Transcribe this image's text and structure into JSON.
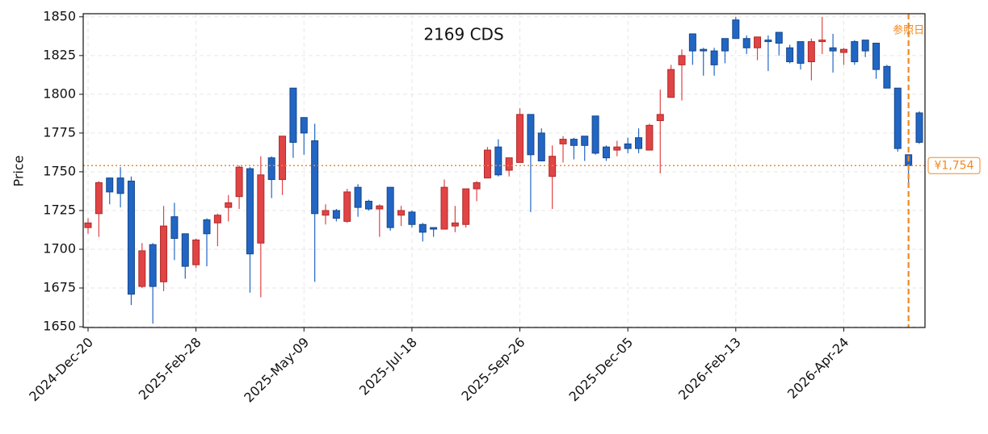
{
  "chart_data": {
    "type": "candlestick",
    "title": "2169  CDS",
    "y_label": "Price",
    "categories": [
      "2024-Dec-20",
      null,
      null,
      null,
      null,
      null,
      null,
      null,
      null,
      null,
      "2025-Feb-28",
      null,
      null,
      null,
      null,
      null,
      null,
      null,
      null,
      null,
      "2025-May-09",
      null,
      null,
      null,
      null,
      null,
      null,
      null,
      null,
      null,
      "2025-Jul-18",
      null,
      null,
      null,
      null,
      null,
      null,
      null,
      null,
      null,
      "2025-Sep-26",
      null,
      null,
      null,
      null,
      null,
      null,
      null,
      null,
      null,
      "2025-Dec-05",
      null,
      null,
      null,
      null,
      null,
      null,
      null,
      null,
      null,
      "2026-Feb-13",
      null,
      null,
      null,
      null,
      null,
      null,
      null,
      null,
      null,
      "2026-Apr-24",
      null,
      null,
      null,
      null,
      null,
      null,
      null
    ],
    "open": [
      1714,
      1723,
      1746,
      1746,
      1744,
      1676,
      1703,
      1679,
      1721,
      1710,
      1690,
      1719,
      1717,
      1727,
      1734,
      1752,
      1704,
      1759,
      1745,
      1804,
      1785,
      1770,
      1722,
      1725,
      1718,
      1740,
      1731,
      1726,
      1740,
      1722,
      1724,
      1716,
      1714,
      1713,
      1715,
      1716,
      1739,
      1746,
      1766,
      1751,
      1756,
      1787,
      1775,
      1747,
      1768,
      1771,
      1773,
      1786,
      1766,
      1764,
      1768,
      1772,
      1764,
      1783,
      1798,
      1819,
      1839,
      1829,
      1828,
      1836,
      1848,
      1836,
      1830,
      1835,
      1840,
      1830,
      1834,
      1821,
      1834,
      1830,
      1827,
      1834,
      1835,
      1833,
      1818,
      1804,
      1761,
      1788
    ],
    "high": [
      1720,
      1744,
      1746,
      1753,
      1747,
      1704,
      1704,
      1728,
      1730,
      1710,
      1707,
      1720,
      1723,
      1735,
      1754,
      1753,
      1760,
      1760,
      1773,
      1804,
      1785,
      1781,
      1729,
      1726,
      1739,
      1742,
      1732,
      1729,
      1740,
      1728,
      1725,
      1717,
      1714,
      1745,
      1728,
      1739,
      1744,
      1766,
      1771,
      1759,
      1791,
      1787,
      1778,
      1767,
      1773,
      1772,
      1773,
      1786,
      1767,
      1770,
      1772,
      1778,
      1781,
      1803,
      1819,
      1829,
      1839,
      1830,
      1830,
      1836,
      1850,
      1838,
      1837,
      1838,
      1840,
      1832,
      1834,
      1836,
      1850,
      1839,
      1830,
      1835,
      1835,
      1833,
      1819,
      1804,
      1761,
      1789
    ],
    "low": [
      1710,
      1708,
      1729,
      1727,
      1664,
      1675,
      1652,
      1673,
      1693,
      1681,
      1688,
      1689,
      1702,
      1718,
      1726,
      1672,
      1669,
      1733,
      1735,
      1759,
      1761,
      1679,
      1716,
      1718,
      1717,
      1721,
      1725,
      1708,
      1712,
      1715,
      1714,
      1705,
      1708,
      1713,
      1711,
      1714,
      1731,
      1746,
      1747,
      1747,
      1756,
      1724,
      1757,
      1726,
      1756,
      1758,
      1757,
      1761,
      1757,
      1760,
      1762,
      1762,
      1764,
      1749,
      1798,
      1796,
      1819,
      1812,
      1812,
      1820,
      1836,
      1826,
      1822,
      1815,
      1825,
      1820,
      1816,
      1809,
      1826,
      1814,
      1819,
      1819,
      1824,
      1810,
      1804,
      1763,
      1742,
      1768
    ],
    "close": [
      1717,
      1743,
      1737,
      1736,
      1671,
      1699,
      1676,
      1715,
      1707,
      1689,
      1706,
      1710,
      1722,
      1730,
      1753,
      1697,
      1748,
      1745,
      1773,
      1769,
      1775,
      1723,
      1725,
      1720,
      1737,
      1727,
      1726,
      1728,
      1714,
      1725,
      1716,
      1711,
      1713,
      1740,
      1717,
      1739,
      1743,
      1764,
      1748,
      1759,
      1787,
      1761,
      1757,
      1760,
      1771,
      1767,
      1767,
      1762,
      1759,
      1766,
      1765,
      1765,
      1780,
      1787,
      1816,
      1825,
      1828,
      1828,
      1819,
      1828,
      1836,
      1830,
      1837,
      1834,
      1833,
      1821,
      1820,
      1834,
      1835,
      1828,
      1829,
      1821,
      1828,
      1816,
      1804,
      1765,
      1754,
      1769
    ],
    "up_color": "#e04444",
    "down_color": "#2266c4",
    "ylim": [
      1649.5,
      1852
    ],
    "yticks": [
      1650,
      1675,
      1700,
      1725,
      1750,
      1775,
      1800,
      1825,
      1850
    ],
    "grid": true,
    "reference_price": {
      "value": 1754,
      "label": "¥1,754",
      "color": "#f08a24"
    },
    "reference_date": {
      "index": 76,
      "label": "参照日",
      "color": "#f08a24"
    }
  }
}
